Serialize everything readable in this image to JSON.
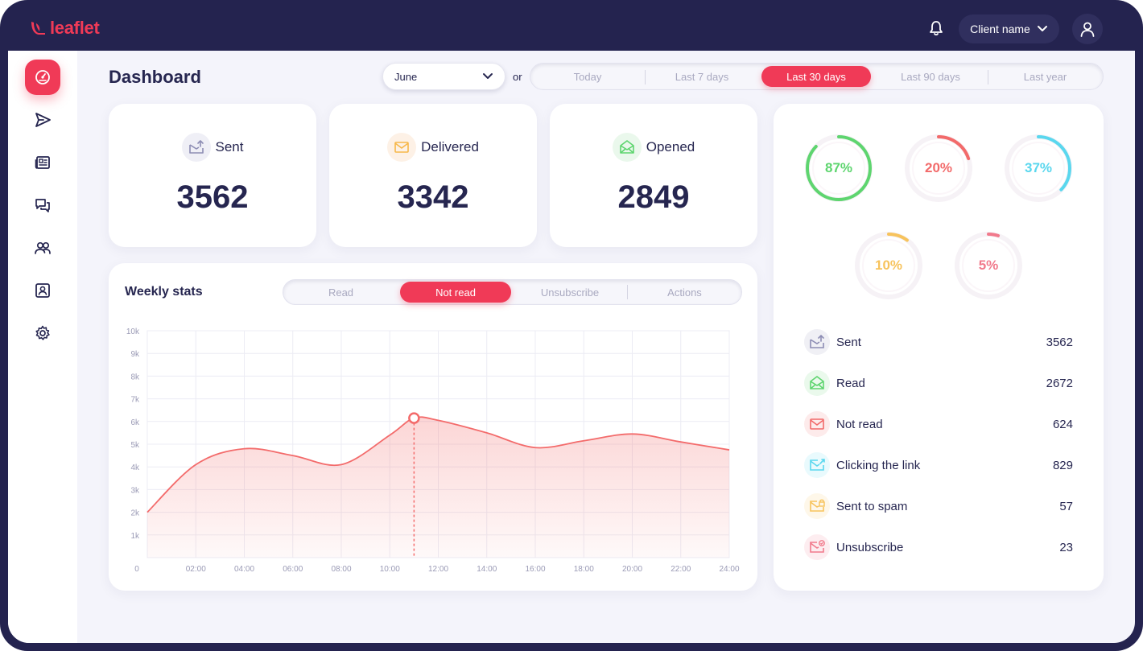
{
  "app": {
    "logo_text": "leaflet",
    "brand_color": "#f03a57"
  },
  "topbar": {
    "client_label": "Client name"
  },
  "sidebar": {
    "items": [
      {
        "icon": "dashboard-icon",
        "active": true
      },
      {
        "icon": "send-icon",
        "active": false
      },
      {
        "icon": "newspaper-icon",
        "active": false
      },
      {
        "icon": "chat-icon",
        "active": false
      },
      {
        "icon": "users-icon",
        "active": false
      },
      {
        "icon": "contact-card-icon",
        "active": false
      },
      {
        "icon": "gear-icon",
        "active": false
      }
    ]
  },
  "header": {
    "title": "Dashboard",
    "month_select": "June",
    "or_label": "or",
    "ranges": [
      "Today",
      "Last 7 days",
      "Last 30 days",
      "Last 90 days",
      "Last year"
    ],
    "active_range": "Last 30 days"
  },
  "stats": [
    {
      "label": "Sent",
      "value": "3562",
      "icon": "mail-send-icon"
    },
    {
      "label": "Delivered",
      "value": "3342",
      "icon": "mail-delivered-icon"
    },
    {
      "label": "Opened",
      "value": "2849",
      "icon": "mail-open-icon"
    }
  ],
  "weekly": {
    "title": "Weekly stats",
    "tabs": [
      "Read",
      "Not read",
      "Unsubscribe",
      "Actions"
    ],
    "active_tab": "Not read"
  },
  "chart_data": {
    "type": "area",
    "title": "",
    "xlabel": "",
    "ylabel": "",
    "x_ticks": [
      "0",
      "02:00",
      "04:00",
      "06:00",
      "08:00",
      "10:00",
      "12:00",
      "14:00",
      "16:00",
      "18:00",
      "20:00",
      "22:00",
      "24:00"
    ],
    "y_ticks": [
      "1k",
      "2k",
      "3k",
      "4k",
      "5k",
      "6k",
      "7k",
      "8k",
      "9k",
      "10k"
    ],
    "ylim": [
      0,
      10000
    ],
    "xlim": [
      0,
      24
    ],
    "series": [
      {
        "x": [
          0,
          2,
          4,
          6,
          8,
          10,
          11,
          12,
          14,
          16,
          18,
          20,
          22,
          24
        ],
        "values": [
          2000,
          4100,
          4800,
          4500,
          4100,
          5400,
          6150,
          6050,
          5500,
          4850,
          5150,
          5450,
          5100,
          4750
        ],
        "color": "#f36b6b"
      }
    ],
    "highlight": {
      "x": 11,
      "y": 6150
    },
    "grid": true
  },
  "rings": [
    {
      "label": "87%",
      "value": 87,
      "color": "#5ed56f"
    },
    {
      "label": "20%",
      "value": 20,
      "color": "#f26a6a"
    },
    {
      "label": "37%",
      "value": 37,
      "color": "#5ad7ee"
    },
    {
      "label": "10%",
      "value": 10,
      "color": "#f7c35c"
    },
    {
      "label": "5%",
      "value": 5,
      "color": "#f17a8c"
    }
  ],
  "summary": [
    {
      "label": "Sent",
      "value": "3562",
      "icon": "mail-send-icon",
      "color": "#8d8db4"
    },
    {
      "label": "Read",
      "value": "2672",
      "icon": "mail-open-icon",
      "color": "#5ed56f"
    },
    {
      "label": "Not read",
      "value": "624",
      "icon": "mail-icon",
      "color": "#f26a6a"
    },
    {
      "label": "Clicking the link",
      "value": "829",
      "icon": "mail-link-icon",
      "color": "#5ad7ee"
    },
    {
      "label": "Sent to spam",
      "value": "57",
      "icon": "mail-spam-icon",
      "color": "#f7c35c"
    },
    {
      "label": "Unsubscribe",
      "value": "23",
      "icon": "mail-unsubscribe-icon",
      "color": "#f17a8c"
    }
  ]
}
